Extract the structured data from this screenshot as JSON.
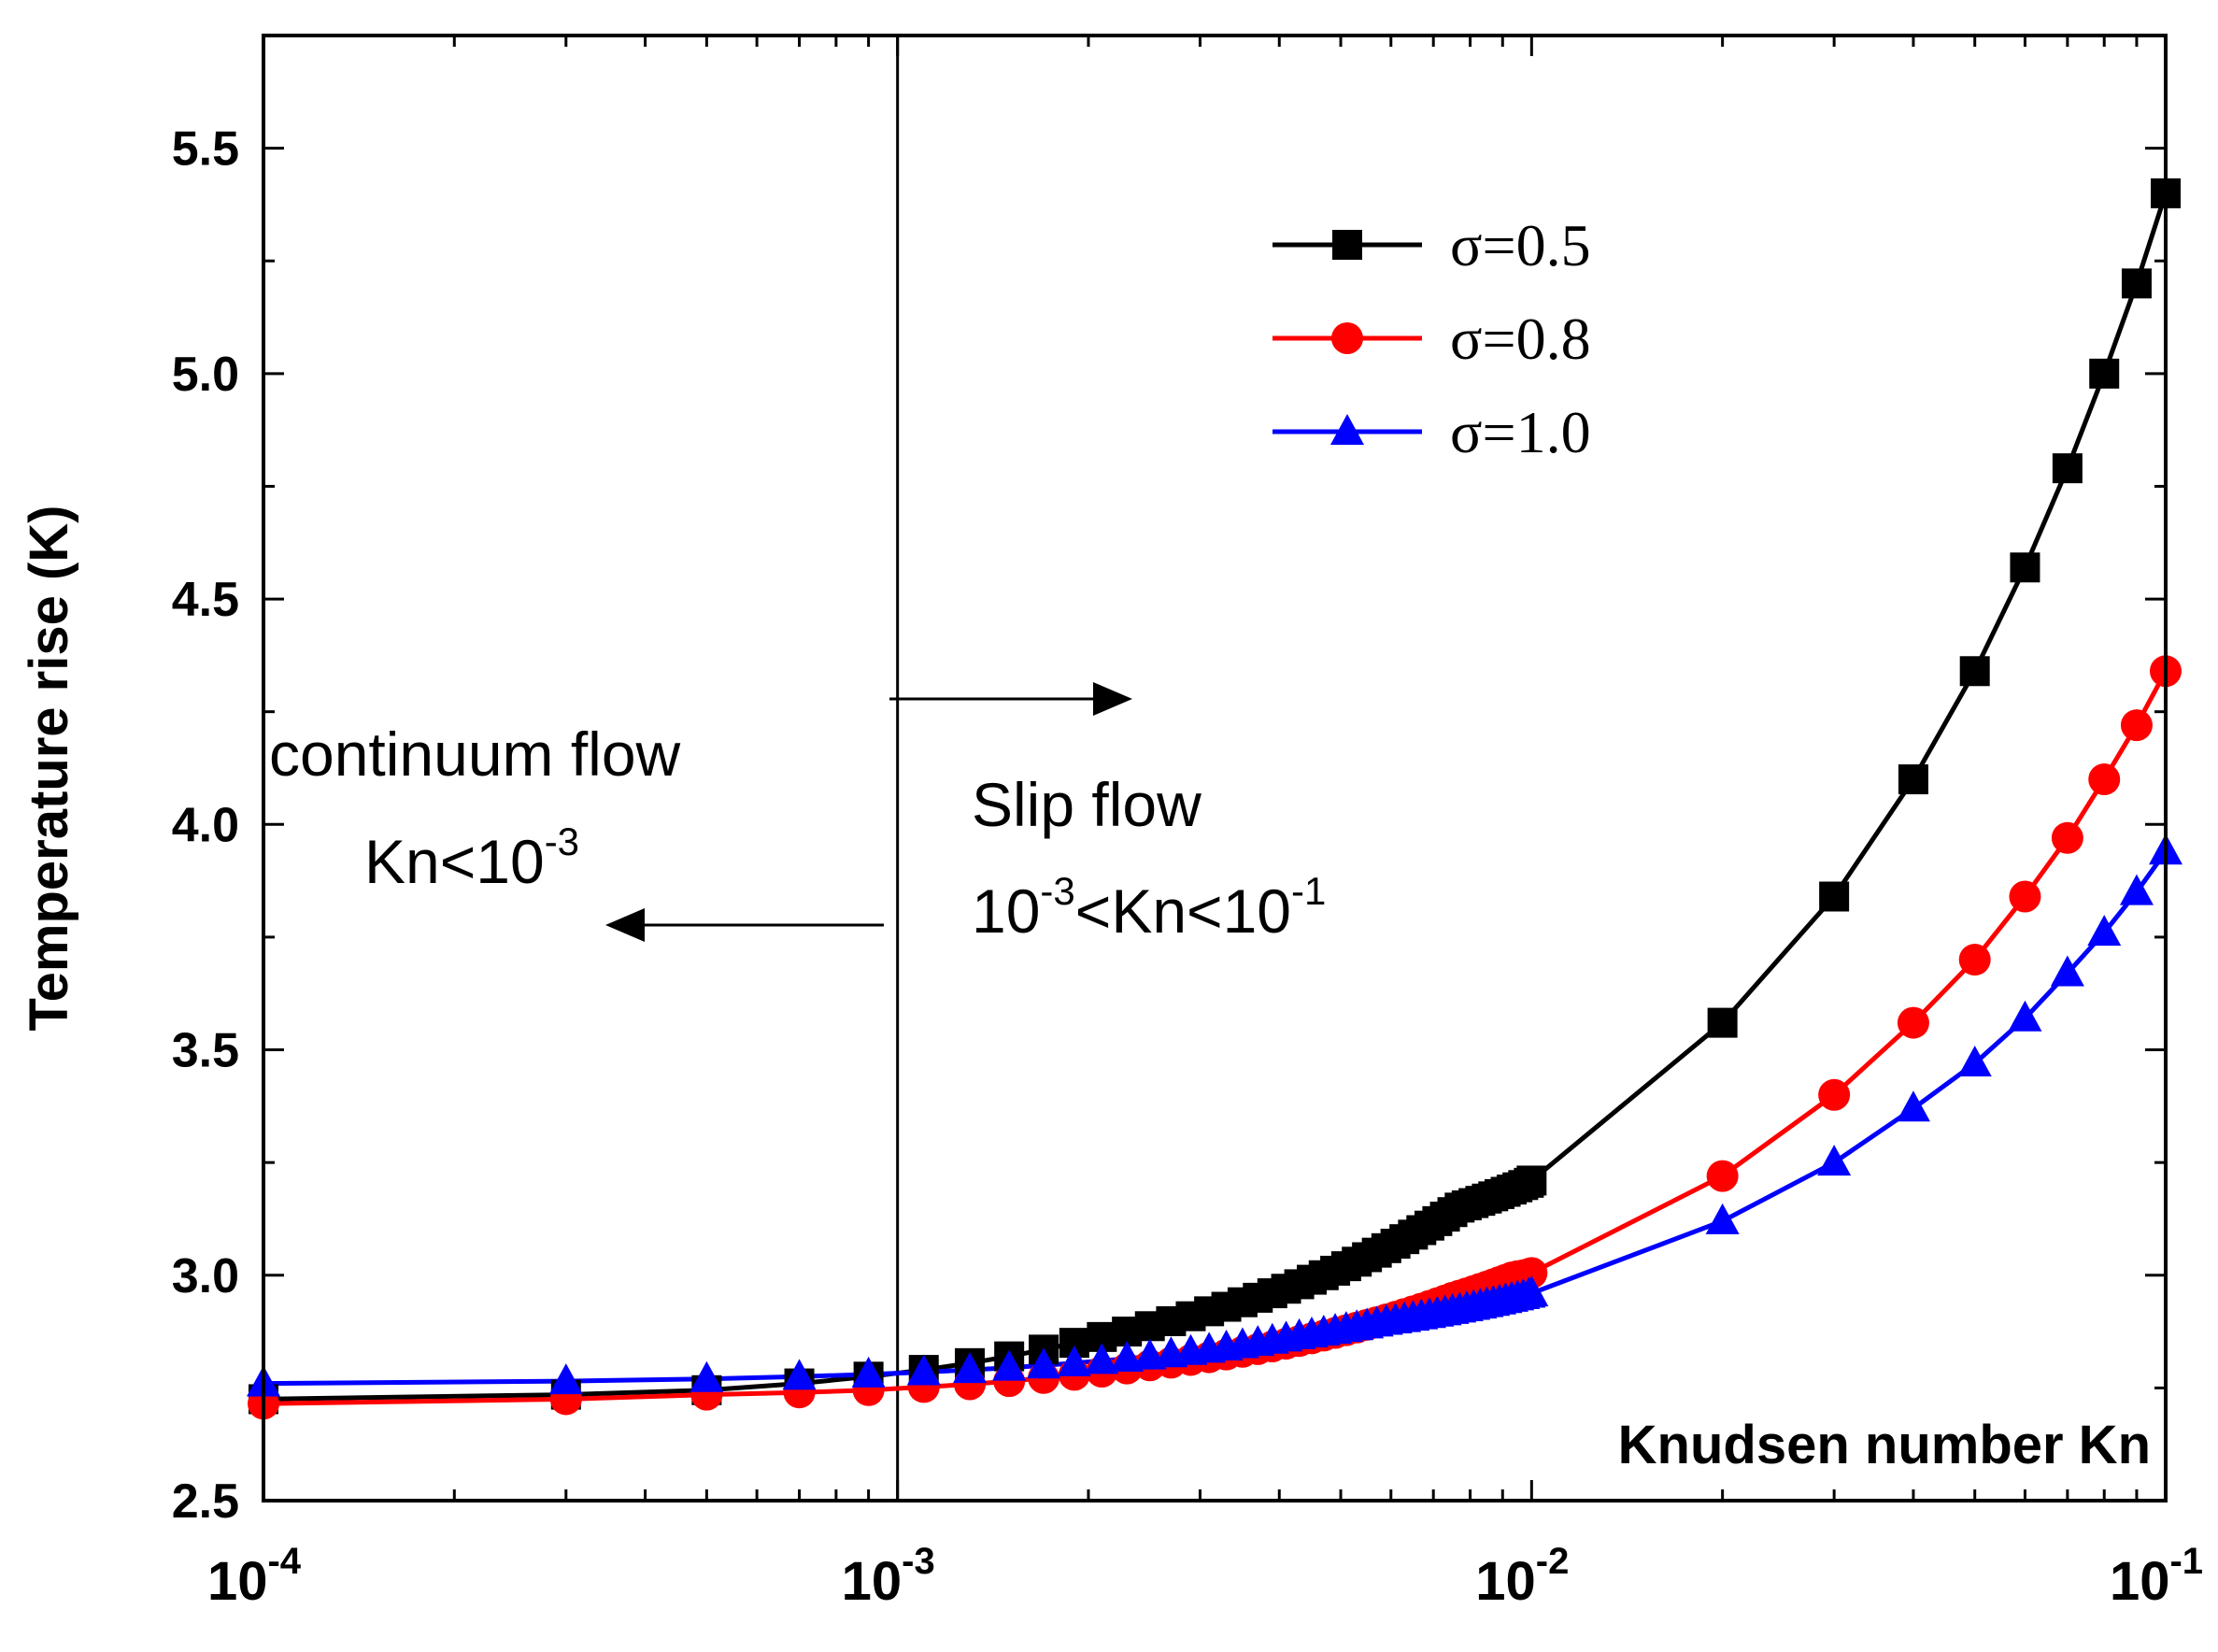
{
  "chart_data": {
    "type": "line",
    "xscale": "log",
    "xlabel": "Knudsen number Kn",
    "ylabel": "Temperature rise (K)",
    "xlim": [
      0.0001,
      0.1
    ],
    "ylim": [
      2.5,
      5.75
    ],
    "y_ticks": [
      2.5,
      3.0,
      3.5,
      4.0,
      4.5,
      5.0,
      5.5
    ],
    "y_tick_labels": [
      "2.5",
      "3.0",
      "3.5",
      "4.0",
      "4.5",
      "5.0",
      "5.5"
    ],
    "x_ticks": [
      {
        "value": 0.0001,
        "base": "10",
        "exp": "-4"
      },
      {
        "value": 0.001,
        "base": "10",
        "exp": "-3"
      },
      {
        "value": 0.01,
        "base": "10",
        "exp": "-2"
      },
      {
        "value": 0.1,
        "base": "10",
        "exp": "-1"
      }
    ],
    "divider_at_x": 0.001,
    "legend_position": "top-right",
    "annotations": {
      "left_region": {
        "line1": "continuum flow",
        "line2_base": "Kn<10",
        "line2_exp": "-3"
      },
      "right_region": {
        "line1": "Slip flow",
        "line2_a": "10",
        "line2_a_exp": "-3",
        "line2_b": "<Kn<10",
        "line2_b_exp": "-1"
      }
    },
    "series": [
      {
        "name": "σ=0.5",
        "color": "#000000",
        "marker": "square",
        "x": [
          0.0001,
          0.0003,
          0.0005,
          0.0007,
          0.0009,
          0.0011,
          0.0013,
          0.0015,
          0.0017,
          0.0019,
          0.0021,
          0.0023,
          0.0025,
          0.0027,
          0.0029,
          0.0031,
          0.0033,
          0.0035,
          0.0037,
          0.0039,
          0.0041,
          0.0043,
          0.0045,
          0.0047,
          0.0049,
          0.0051,
          0.0053,
          0.0055,
          0.0057,
          0.0059,
          0.0061,
          0.0063,
          0.0065,
          0.0067,
          0.0069,
          0.0071,
          0.0073,
          0.0075,
          0.0077,
          0.0079,
          0.0081,
          0.0083,
          0.0085,
          0.0087,
          0.0089,
          0.0091,
          0.0093,
          0.0095,
          0.0097,
          0.0099,
          0.01,
          0.02,
          0.03,
          0.04,
          0.05,
          0.06,
          0.07,
          0.08,
          0.09,
          0.1
        ],
        "y": [
          2.725,
          2.735,
          2.745,
          2.76,
          2.775,
          2.79,
          2.805,
          2.82,
          2.835,
          2.85,
          2.863,
          2.875,
          2.887,
          2.898,
          2.909,
          2.92,
          2.93,
          2.94,
          2.95,
          2.96,
          2.97,
          2.98,
          2.99,
          3.0,
          3.01,
          3.02,
          3.03,
          3.04,
          3.05,
          3.06,
          3.07,
          3.08,
          3.09,
          3.1,
          3.11,
          3.12,
          3.13,
          3.14,
          3.15,
          3.155,
          3.16,
          3.165,
          3.17,
          3.175,
          3.18,
          3.185,
          3.19,
          3.195,
          3.2,
          3.205,
          3.21,
          3.56,
          3.84,
          4.1,
          4.34,
          4.57,
          4.79,
          5.0,
          5.2,
          5.4
        ]
      },
      {
        "name": "σ=0.8",
        "color": "#ff0000",
        "marker": "circle",
        "x": [
          0.0001,
          0.0003,
          0.0005,
          0.0007,
          0.0009,
          0.0011,
          0.0013,
          0.0015,
          0.0017,
          0.0019,
          0.0021,
          0.0023,
          0.0025,
          0.0027,
          0.0029,
          0.0031,
          0.0033,
          0.0035,
          0.0037,
          0.0039,
          0.0041,
          0.0043,
          0.0045,
          0.0047,
          0.0049,
          0.0051,
          0.0053,
          0.0055,
          0.0057,
          0.0059,
          0.0061,
          0.0063,
          0.0065,
          0.0067,
          0.0069,
          0.0071,
          0.0073,
          0.0075,
          0.0077,
          0.0079,
          0.0081,
          0.0083,
          0.0085,
          0.0087,
          0.0089,
          0.0091,
          0.0093,
          0.0095,
          0.0097,
          0.0099,
          0.01,
          0.02,
          0.03,
          0.04,
          0.05,
          0.06,
          0.07,
          0.08,
          0.09,
          0.1
        ],
        "y": [
          2.715,
          2.725,
          2.735,
          2.74,
          2.745,
          2.752,
          2.758,
          2.765,
          2.772,
          2.779,
          2.786,
          2.793,
          2.8,
          2.806,
          2.812,
          2.818,
          2.824,
          2.83,
          2.836,
          2.842,
          2.848,
          2.854,
          2.86,
          2.866,
          2.872,
          2.878,
          2.884,
          2.89,
          2.896,
          2.902,
          2.908,
          2.914,
          2.92,
          2.926,
          2.932,
          2.938,
          2.944,
          2.95,
          2.955,
          2.96,
          2.965,
          2.97,
          2.975,
          2.98,
          2.985,
          2.99,
          2.995,
          2.998,
          3.0,
          3.003,
          3.005,
          3.22,
          3.4,
          3.56,
          3.7,
          3.84,
          3.97,
          4.1,
          4.22,
          4.34
        ]
      },
      {
        "name": "σ=1.0",
        "color": "#0000ff",
        "marker": "triangle",
        "x": [
          0.0001,
          0.0003,
          0.0005,
          0.0007,
          0.0009,
          0.0011,
          0.0013,
          0.0015,
          0.0017,
          0.0019,
          0.0021,
          0.0023,
          0.0025,
          0.0027,
          0.0029,
          0.0031,
          0.0033,
          0.0035,
          0.0037,
          0.0039,
          0.0041,
          0.0043,
          0.0045,
          0.0047,
          0.0049,
          0.0051,
          0.0053,
          0.0055,
          0.0057,
          0.0059,
          0.0061,
          0.0063,
          0.0065,
          0.0067,
          0.0069,
          0.0071,
          0.0073,
          0.0075,
          0.0077,
          0.0079,
          0.0081,
          0.0083,
          0.0085,
          0.0087,
          0.0089,
          0.0091,
          0.0093,
          0.0095,
          0.0097,
          0.0099,
          0.01,
          0.02,
          0.03,
          0.04,
          0.05,
          0.06,
          0.07,
          0.08,
          0.09,
          0.1
        ],
        "y": [
          2.76,
          2.765,
          2.77,
          2.775,
          2.78,
          2.785,
          2.79,
          2.795,
          2.8,
          2.805,
          2.81,
          2.815,
          2.82,
          2.825,
          2.83,
          2.835,
          2.84,
          2.845,
          2.85,
          2.855,
          2.86,
          2.865,
          2.869,
          2.873,
          2.877,
          2.881,
          2.885,
          2.889,
          2.893,
          2.897,
          2.9,
          2.903,
          2.906,
          2.909,
          2.912,
          2.915,
          2.918,
          2.921,
          2.924,
          2.927,
          2.93,
          2.933,
          2.936,
          2.939,
          2.942,
          2.945,
          2.948,
          2.951,
          2.954,
          2.957,
          2.96,
          3.12,
          3.25,
          3.37,
          3.47,
          3.57,
          3.67,
          3.76,
          3.85,
          3.94
        ]
      }
    ]
  }
}
